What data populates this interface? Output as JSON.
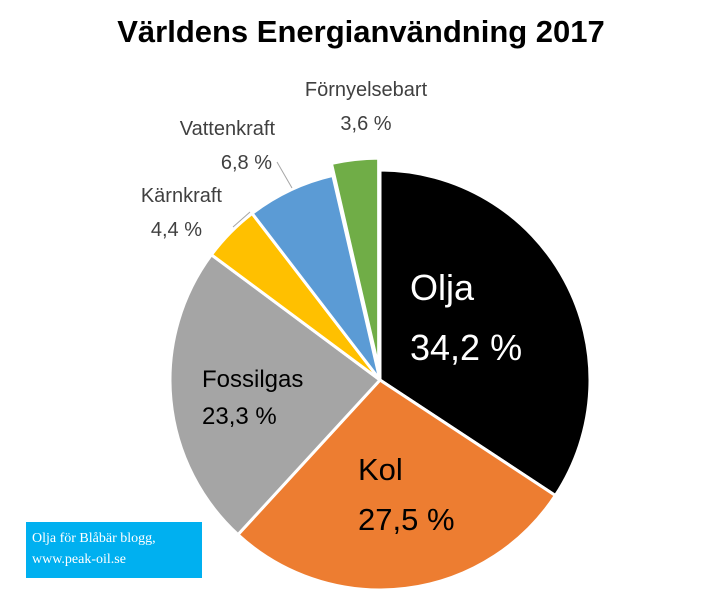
{
  "chart_data": {
    "type": "pie",
    "title": "Världens Energianvändning 2017",
    "slices": [
      {
        "name": "Olja",
        "value": 34.2,
        "value_label": "34,2 %",
        "color": "#000000",
        "text_color": "#ffffff",
        "exploded": false
      },
      {
        "name": "Kol",
        "value": 27.5,
        "value_label": "27,5 %",
        "color": "#ed7d31",
        "text_color": "#000000",
        "exploded": false
      },
      {
        "name": "Fossilgas",
        "value": 23.3,
        "value_label": "23,3 %",
        "color": "#a5a5a5",
        "text_color": "#000000",
        "exploded": false
      },
      {
        "name": "Kärnkraft",
        "value": 4.4,
        "value_label": "4,4 %",
        "color": "#ffc000",
        "text_color": "#404040",
        "exploded": false
      },
      {
        "name": "Vattenkraft",
        "value": 6.8,
        "value_label": "6,8 %",
        "color": "#5b9bd5",
        "text_color": "#404040",
        "exploded": false
      },
      {
        "name": "Förnyelsebart",
        "value": 3.6,
        "value_label": "3,6 %",
        "color": "#70ad47",
        "text_color": "#404040",
        "exploded": true
      }
    ],
    "legend": "none"
  },
  "credit": {
    "line1": "Olja för Blåbär blogg,",
    "line2": "www.peak-oil.se",
    "background": "#00b0f0"
  }
}
